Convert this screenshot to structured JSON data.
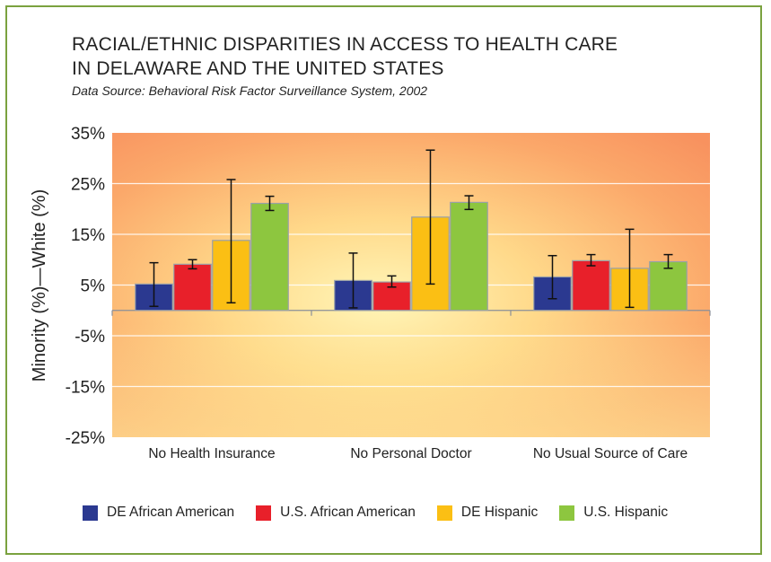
{
  "title_line1": "RACIAL/ETHNIC DISPARITIES IN ACCESS TO HEALTH CARE",
  "title_line2": "IN DELAWARE AND THE UNITED STATES",
  "subtitle": "Data Source: Behavioral Risk Factor Surveillance System, 2002",
  "chart_data": {
    "type": "bar",
    "title": "RACIAL/ETHNIC DISPARITIES IN ACCESS TO HEALTH CARE IN DELAWARE AND THE UNITED STATES",
    "subtitle": "Data Source: Behavioral Risk Factor Surveillance System, 2002",
    "xlabel": "",
    "ylabel": "Minority (%)—White (%)",
    "ylim": [
      -25,
      35
    ],
    "yticks": [
      -25,
      -15,
      -5,
      5,
      15,
      25,
      35
    ],
    "ytick_labels": [
      "-25%",
      "-15%",
      "-5%",
      "5%",
      "15%",
      "25%",
      "35%"
    ],
    "categories": [
      "No Health Insurance",
      "No Personal Doctor",
      "No Usual Source of Care"
    ],
    "series": [
      {
        "name": "DE African American",
        "color": "#2b3990",
        "values": [
          5.2,
          5.9,
          6.6
        ],
        "err_low": [
          0.8,
          0.5,
          2.3
        ],
        "err_high": [
          9.4,
          11.3,
          10.8
        ]
      },
      {
        "name": "U.S. African American",
        "color": "#e8202a",
        "values": [
          9.1,
          5.6,
          9.8
        ],
        "err_low": [
          8.2,
          4.6,
          8.8
        ],
        "err_high": [
          10.0,
          6.8,
          11.0
        ]
      },
      {
        "name": "DE Hispanic",
        "color": "#fbbf14",
        "values": [
          13.8,
          18.4,
          8.3
        ],
        "err_low": [
          1.5,
          5.2,
          0.6
        ],
        "err_high": [
          25.8,
          31.6,
          16.0
        ]
      },
      {
        "name": "U.S. Hispanic",
        "color": "#8dc63f",
        "values": [
          21.1,
          21.3,
          9.6
        ],
        "err_low": [
          19.7,
          19.9,
          8.3
        ],
        "err_high": [
          22.5,
          22.6,
          11.0
        ]
      }
    ],
    "grid": true,
    "legend": "bottom"
  }
}
